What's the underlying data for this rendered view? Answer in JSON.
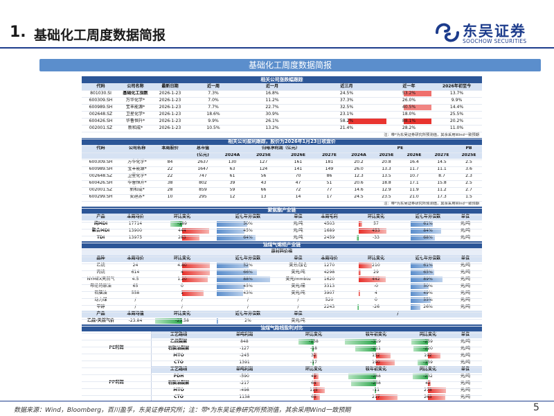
{
  "header": {
    "number": "1.",
    "title": "基础化工周度数据简报",
    "logo_name": "东吴证券",
    "logo_sub": "SOOCHOW SECURITIES",
    "brand_color": "#1d3c8c"
  },
  "banner": "基础化工周度数据简报",
  "footer": "数据来源：Wind，Bloomberg，百川盈孚，东吴证券研究所；注：带*为东吴证券研究所预测值，其余采用Wind一致预期",
  "page_number": "5",
  "colors": {
    "red": "#e8302b",
    "green": "#2aa64a",
    "blue": "#5b8ecc",
    "section": "#2c5697"
  },
  "s1": {
    "title": "相关公司涨跌幅跟踪",
    "headers": [
      "代码",
      "公司名称",
      "最新日期",
      "近一周",
      "近一月",
      "近三月",
      "近一年",
      "2026年初至今"
    ],
    "rows": [
      {
        "code": "801030.SI",
        "name": "基础化工指数",
        "date": "2026-1-23",
        "w": "7.3%",
        "m": "16.8%",
        "q": "24.5%",
        "y": "53.2%",
        "ytd": "13.7%"
      },
      {
        "code": "600309.SH",
        "name": "万华化学*",
        "date": "2026-1-23",
        "w": "7.0%",
        "m": "11.2%",
        "q": "37.3%",
        "y": "26.0%",
        "ytd": "9.9%"
      },
      {
        "code": "600989.SH",
        "name": "宝丰能源*",
        "date": "2026-1-23",
        "w": "7.7%",
        "m": "22.7%",
        "q": "32.5%",
        "y": "40.5%",
        "ytd": "14.4%"
      },
      {
        "code": "002648.SZ",
        "name": "卫星化学*",
        "date": "2026-1-23",
        "w": "18.6%",
        "m": "30.9%",
        "q": "23.1%",
        "y": "18.0%",
        "ytd": "25.5%"
      },
      {
        "code": "600426.SH",
        "name": "华鲁恒升*",
        "date": "2026-1-23",
        "w": "9.9%",
        "m": "26.1%",
        "q": "58.2%",
        "y": "88.1%",
        "ytd": "20.2%"
      },
      {
        "code": "002001.SZ",
        "name": "新和成*",
        "date": "2026-1-23",
        "w": "10.5%",
        "m": "13.2%",
        "q": "21.4%",
        "y": "28.2%",
        "ytd": "11.0%"
      }
    ],
    "note": "注：带*为东吴证券研究所预测值，其余采用Wind一致预期"
  },
  "s2": {
    "title": "相关公司盈利跟踪，股价为2026年1月23日收盘价",
    "h1": {
      "code": "代码",
      "name": "公司名称",
      "price": "本周股价",
      "mcap": "总市值",
      "mcap_unit": "(亿元)",
      "np": "归母净利润（亿元）",
      "pe": "PE",
      "pb": "PB"
    },
    "years": [
      "2024A",
      "2025E",
      "2026E",
      "2027E",
      "2024A",
      "2025E",
      "2026E",
      "2027E",
      "2025E"
    ],
    "rows": [
      {
        "code": "600309.SH",
        "name": "万华化学*",
        "price": "84",
        "mcap": "2637",
        "n24": "130",
        "n25": "127",
        "n26": "161",
        "n27": "181",
        "p24": "20.2",
        "p25": "20.8",
        "p26": "16.4",
        "p27": "14.5",
        "pb": "2.5"
      },
      {
        "code": "600989.SH",
        "name": "宝丰能源*",
        "price": "22",
        "mcap": "1647",
        "n24": "63",
        "n25": "124",
        "n26": "141",
        "n27": "149",
        "p24": "26.0",
        "p25": "13.3",
        "p26": "11.7",
        "p27": "11.1",
        "pb": "3.6"
      },
      {
        "code": "002648.SZ",
        "name": "卫星化学*",
        "price": "22",
        "mcap": "747",
        "n24": "61",
        "n25": "56",
        "n26": "70",
        "n27": "86",
        "p24": "12.3",
        "p25": "13.5",
        "p26": "10.7",
        "p27": "8.7",
        "pb": "2.3"
      },
      {
        "code": "600426.SH",
        "name": "华鲁恒升*",
        "price": "38",
        "mcap": "802",
        "n24": "39",
        "n25": "43",
        "n26": "47",
        "n27": "51",
        "p24": "20.6",
        "p25": "18.8",
        "p26": "17.1",
        "p27": "15.8",
        "pb": "2.5"
      },
      {
        "code": "002001.SZ",
        "name": "新和成*",
        "price": "28",
        "mcap": "859",
        "n24": "59",
        "n25": "66",
        "n26": "72",
        "n27": "77",
        "p24": "14.6",
        "p25": "12.9",
        "p26": "11.9",
        "p27": "11.2",
        "pb": "2.7"
      },
      {
        "code": "600299.SH",
        "name": "安迪苏*",
        "price": "10",
        "mcap": "295",
        "n24": "12",
        "n25": "13",
        "n26": "14",
        "n27": "17",
        "p24": "24.5",
        "p25": "23.5",
        "p26": "21.0",
        "p27": "17.3",
        "pb": "1.5"
      }
    ],
    "note": "注：带*为东吴证券研究所预测值，其余采用Wind一致预期"
  },
  "s3": {
    "title": "聚氨酯产业链",
    "headers": [
      "产品",
      "本周均价",
      "环比变化",
      "近七年分位数",
      "单位",
      "本周毛利",
      "环比变化",
      "近七年分位数",
      "单位"
    ],
    "rows": [
      {
        "p": "纯MDI",
        "price": "17714",
        "chg": "-189",
        "chg_v": -189,
        "pct": "50%",
        "pct_v": 0.5,
        "u": "元/吨",
        "gp": "4503",
        "gchg": "57",
        "gchg_v": 57,
        "gpct": "61%",
        "gpct_v": 0.61,
        "gu": "元/吨"
      },
      {
        "p": "聚合MDI",
        "price": "13900",
        "chg": "444",
        "chg_v": 444,
        "pct": "45%",
        "pct_v": 0.45,
        "u": "元/吨",
        "gp": "1689",
        "gchg": "453",
        "gchg_v": 453,
        "gpct": "84%",
        "gpct_v": 0.84,
        "gu": "元/吨"
      },
      {
        "p": "TDI",
        "price": "13975",
        "chg": "283",
        "chg_v": 283,
        "pct": "64%",
        "pct_v": 0.64,
        "u": "元/吨",
        "gp": "2459",
        "gchg": "-33",
        "gchg_v": -33,
        "gpct": "68%",
        "gpct_v": 0.68,
        "gu": "元/吨"
      }
    ]
  },
  "s4": {
    "title": "油煤气烯烃产业链",
    "subtitle": "原材料价格",
    "headers": [
      "品种",
      "本周均价",
      "环比变化",
      "近七年分位数",
      "单位",
      "本周均价",
      "环比变化",
      "近七年分位数",
      "单位"
    ],
    "rows": [
      {
        "p": "乙烷",
        "price": "24",
        "chg": "4.80",
        "chg_v": 4.8,
        "pct": "52%",
        "pct_v": 0.52,
        "u": "美分/加仑",
        "gp": "1270",
        "gchg": "210",
        "gchg_v": 210,
        "gpct": "61%",
        "gpct_v": 0.61,
        "gu": "元/吨"
      },
      {
        "p": "丙烷",
        "price": "614",
        "chg": "4",
        "chg_v": 4,
        "pct": "66%",
        "pct_v": 0.66,
        "u": "美元/吨",
        "gp": "4298",
        "gchg": "29",
        "gchg_v": 29,
        "gpct": "65%",
        "gpct_v": 0.65,
        "gu": "元/吨"
      },
      {
        "p": "NYMEX天然气",
        "price": "4.5",
        "chg": "1.20",
        "chg_v": 1.2,
        "pct": "88%",
        "pct_v": 0.88,
        "u": "美元/mmbtu",
        "gp": "1620",
        "gchg": "442",
        "gchg_v": 442,
        "gpct": "89%",
        "gpct_v": 0.89,
        "gu": "元/吨"
      },
      {
        "p": "布伦特原油",
        "price": "65",
        "chg": "0",
        "chg_v": 0,
        "pct": "45%",
        "pct_v": 0.45,
        "u": "美元/桶",
        "gp": "3313",
        "gchg": "-0",
        "gchg_v": 0,
        "gpct": "50%",
        "gpct_v": 0.5,
        "gu": "元/吨"
      },
      {
        "p": "石脑油",
        "price": "558",
        "chg": "1",
        "chg_v": 1,
        "pct": "43%",
        "pct_v": 0.43,
        "u": "美元/吨",
        "gp": "3907",
        "gchg": "4",
        "gchg_v": 4,
        "gpct": "49%",
        "gpct_v": 0.49,
        "gu": "元/吨"
      },
      {
        "p": "动力煤",
        "price": "/",
        "chg": "/",
        "chg_v": 0,
        "pct": "/",
        "pct_v": 0,
        "u": "/",
        "gp": "520",
        "gchg": "0",
        "gchg_v": 0,
        "gpct": "55%",
        "gpct_v": 0.55,
        "gu": "元/吨"
      },
      {
        "p": "甲醇",
        "price": "/",
        "chg": "/",
        "chg_v": 0,
        "pct": "/",
        "pct_v": 0,
        "u": "/",
        "gp": "2243",
        "gchg": "-26",
        "gchg_v": -26,
        "gpct": "26%",
        "gpct_v": 0.26,
        "gu": "元/吨"
      }
    ],
    "spread_headers": [
      "产品",
      "本周均值",
      "环比变化",
      "近七年分位数",
      "单位"
    ],
    "spread": {
      "p": "乙烷-天然气价",
      "price": "-23.84",
      "chg": "-23.58",
      "chg_v": -23.58,
      "pct": "2%",
      "pct_v": 0.02,
      "u": "美元/吨"
    }
  },
  "s5": {
    "title": "油煤气路线盈利对比",
    "headers": [
      "工艺路线",
      "单吨利润",
      "环比变化",
      "较年初变化",
      "同比变化",
      "单位"
    ],
    "pe_label": "PE利润",
    "pp_label": "PP利润",
    "pe": [
      {
        "r": "乙烷裂解",
        "pr": "848",
        "c1": "-158",
        "v1": -158,
        "c2": "-319",
        "v2": -319,
        "c3": "-259",
        "v3": -259,
        "u": "元/吨"
      },
      {
        "r": "石脑油裂解",
        "pr": "-127",
        "c1": "-18",
        "v1": -18,
        "c2": "-211",
        "v2": -211,
        "c3": "-220",
        "v3": -220,
        "u": "元/吨"
      },
      {
        "r": "MTO",
        "pr": "-245",
        "c1": "32",
        "v1": 32,
        "c2": "152",
        "v2": 152,
        "c3": "192",
        "v3": 192,
        "u": "元/吨"
      },
      {
        "r": "CTO",
        "pr": "1391",
        "c1": "-17",
        "v1": -17,
        "c2": "190",
        "v2": 190,
        "c3": "-159",
        "v3": -159,
        "u": "元/吨"
      }
    ],
    "pp": [
      {
        "r": "PDH",
        "pr": "-590",
        "c1": "49",
        "v1": 49,
        "c2": "-288",
        "v2": -288,
        "c3": "-232",
        "v3": -232,
        "u": "元/吨"
      },
      {
        "r": "石脑油裂解",
        "pr": "-217",
        "c1": "64",
        "v1": 64,
        "c2": "-258",
        "v2": -258,
        "c3": "42",
        "v3": 42,
        "u": "元/吨"
      },
      {
        "r": "MTO",
        "pr": "-498",
        "c1": "115",
        "v1": 115,
        "c2": "-11",
        "v2": -11,
        "c3": "278",
        "v3": 278,
        "u": "元/吨"
      },
      {
        "r": "CTO",
        "pr": "1138",
        "c1": "65",
        "v1": 65,
        "c2": "217",
        "v2": 217,
        "c3": "263",
        "v3": 263,
        "u": "元/吨"
      }
    ]
  }
}
